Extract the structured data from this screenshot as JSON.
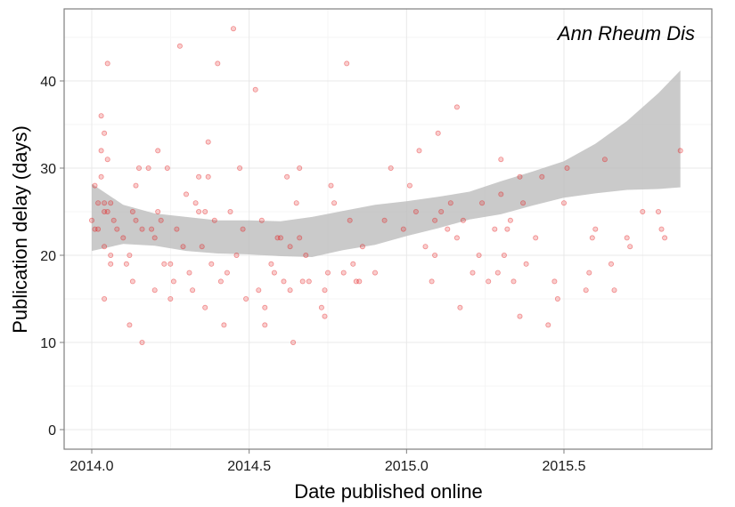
{
  "chart_data": {
    "type": "scatter",
    "title": "",
    "annotation": "Ann Rheum Dis",
    "xlabel": "Date published online",
    "ylabel": "Publication delay (days)",
    "xlim": [
      1913.91,
      2015.97
    ],
    "ylim": [
      -2.2,
      48.2
    ],
    "xticks": [
      2014.0,
      2014.5,
      2015.0,
      2015.5
    ],
    "xtick_labels": [
      "2014.0",
      "2014.5",
      "2015.0",
      "2015.5"
    ],
    "yticks": [
      0,
      10,
      20,
      30,
      40
    ],
    "ytick_labels": [
      "0",
      "10",
      "20",
      "30",
      "40"
    ],
    "grid": true,
    "colors": {
      "points": "#e41a1c",
      "band": "#bdbdbd",
      "grid": "#e8e8e8",
      "frame": "#7f7f7f"
    },
    "points": [
      [
        2014.0,
        24
      ],
      [
        2014.01,
        23
      ],
      [
        2014.01,
        28
      ],
      [
        2014.02,
        26
      ],
      [
        2014.02,
        23
      ],
      [
        2014.03,
        36
      ],
      [
        2014.03,
        32
      ],
      [
        2014.03,
        29
      ],
      [
        2014.04,
        34
      ],
      [
        2014.04,
        25
      ],
      [
        2014.04,
        26
      ],
      [
        2014.04,
        21
      ],
      [
        2014.04,
        15
      ],
      [
        2014.05,
        42
      ],
      [
        2014.05,
        31
      ],
      [
        2014.05,
        25
      ],
      [
        2014.06,
        26
      ],
      [
        2014.06,
        20
      ],
      [
        2014.06,
        19
      ],
      [
        2014.07,
        24
      ],
      [
        2014.08,
        23
      ],
      [
        2014.1,
        22
      ],
      [
        2014.11,
        19
      ],
      [
        2014.12,
        20
      ],
      [
        2014.12,
        12
      ],
      [
        2014.13,
        25
      ],
      [
        2014.13,
        17
      ],
      [
        2014.14,
        28
      ],
      [
        2014.14,
        24
      ],
      [
        2014.15,
        30
      ],
      [
        2014.16,
        23
      ],
      [
        2014.16,
        10
      ],
      [
        2014.18,
        30
      ],
      [
        2014.19,
        23
      ],
      [
        2014.2,
        22
      ],
      [
        2014.2,
        16
      ],
      [
        2014.21,
        32
      ],
      [
        2014.21,
        25
      ],
      [
        2014.22,
        24
      ],
      [
        2014.23,
        19
      ],
      [
        2014.24,
        30
      ],
      [
        2014.25,
        19
      ],
      [
        2014.25,
        15
      ],
      [
        2014.26,
        17
      ],
      [
        2014.27,
        23
      ],
      [
        2014.28,
        44
      ],
      [
        2014.29,
        21
      ],
      [
        2014.3,
        27
      ],
      [
        2014.31,
        18
      ],
      [
        2014.32,
        16
      ],
      [
        2014.33,
        26
      ],
      [
        2014.34,
        29
      ],
      [
        2014.34,
        25
      ],
      [
        2014.35,
        21
      ],
      [
        2014.36,
        25
      ],
      [
        2014.36,
        14
      ],
      [
        2014.37,
        33
      ],
      [
        2014.37,
        29
      ],
      [
        2014.38,
        19
      ],
      [
        2014.39,
        24
      ],
      [
        2014.4,
        42
      ],
      [
        2014.41,
        17
      ],
      [
        2014.42,
        12
      ],
      [
        2014.43,
        18
      ],
      [
        2014.44,
        25
      ],
      [
        2014.45,
        46
      ],
      [
        2014.46,
        20
      ],
      [
        2014.47,
        30
      ],
      [
        2014.48,
        23
      ],
      [
        2014.49,
        15
      ],
      [
        2014.52,
        39
      ],
      [
        2014.53,
        16
      ],
      [
        2014.54,
        24
      ],
      [
        2014.55,
        14
      ],
      [
        2014.55,
        12
      ],
      [
        2014.57,
        19
      ],
      [
        2014.58,
        18
      ],
      [
        2014.59,
        22
      ],
      [
        2014.6,
        22
      ],
      [
        2014.61,
        17
      ],
      [
        2014.62,
        29
      ],
      [
        2014.63,
        21
      ],
      [
        2014.63,
        16
      ],
      [
        2014.64,
        10
      ],
      [
        2014.65,
        26
      ],
      [
        2014.66,
        30
      ],
      [
        2014.66,
        22
      ],
      [
        2014.67,
        17
      ],
      [
        2014.68,
        20
      ],
      [
        2014.69,
        17
      ],
      [
        2014.73,
        14
      ],
      [
        2014.74,
        13
      ],
      [
        2014.74,
        16
      ],
      [
        2014.75,
        18
      ],
      [
        2014.76,
        28
      ],
      [
        2014.77,
        26
      ],
      [
        2014.8,
        18
      ],
      [
        2014.81,
        42
      ],
      [
        2014.82,
        24
      ],
      [
        2014.83,
        19
      ],
      [
        2014.84,
        17
      ],
      [
        2014.85,
        17
      ],
      [
        2014.86,
        21
      ],
      [
        2014.9,
        18
      ],
      [
        2014.93,
        24
      ],
      [
        2014.95,
        30
      ],
      [
        2014.99,
        23
      ],
      [
        2015.01,
        28
      ],
      [
        2015.03,
        25
      ],
      [
        2015.04,
        32
      ],
      [
        2015.06,
        21
      ],
      [
        2015.08,
        17
      ],
      [
        2015.09,
        20
      ],
      [
        2015.09,
        24
      ],
      [
        2015.1,
        34
      ],
      [
        2015.11,
        25
      ],
      [
        2015.13,
        23
      ],
      [
        2015.14,
        26
      ],
      [
        2015.16,
        37
      ],
      [
        2015.16,
        22
      ],
      [
        2015.17,
        14
      ],
      [
        2015.18,
        24
      ],
      [
        2015.21,
        18
      ],
      [
        2015.23,
        20
      ],
      [
        2015.24,
        26
      ],
      [
        2015.26,
        17
      ],
      [
        2015.28,
        23
      ],
      [
        2015.29,
        18
      ],
      [
        2015.3,
        27
      ],
      [
        2015.3,
        31
      ],
      [
        2015.31,
        20
      ],
      [
        2015.32,
        23
      ],
      [
        2015.33,
        24
      ],
      [
        2015.34,
        17
      ],
      [
        2015.36,
        29
      ],
      [
        2015.36,
        13
      ],
      [
        2015.37,
        26
      ],
      [
        2015.38,
        19
      ],
      [
        2015.41,
        22
      ],
      [
        2015.43,
        29
      ],
      [
        2015.45,
        12
      ],
      [
        2015.47,
        17
      ],
      [
        2015.48,
        15
      ],
      [
        2015.5,
        26
      ],
      [
        2015.51,
        30
      ],
      [
        2015.57,
        16
      ],
      [
        2015.58,
        18
      ],
      [
        2015.59,
        22
      ],
      [
        2015.6,
        23
      ],
      [
        2015.63,
        31
      ],
      [
        2015.65,
        19
      ],
      [
        2015.66,
        16
      ],
      [
        2015.7,
        22
      ],
      [
        2015.71,
        21
      ],
      [
        2015.75,
        25
      ],
      [
        2015.8,
        25
      ],
      [
        2015.81,
        23
      ],
      [
        2015.82,
        22
      ],
      [
        2015.87,
        32
      ]
    ],
    "smooth_band": {
      "x": [
        2014.0,
        2014.1,
        2014.2,
        2014.3,
        2014.4,
        2014.5,
        2014.6,
        2014.7,
        2014.8,
        2014.9,
        2015.0,
        2015.1,
        2015.2,
        2015.3,
        2015.4,
        2015.5,
        2015.6,
        2015.7,
        2015.8,
        2015.87
      ],
      "upper": [
        28.2,
        25.8,
        24.8,
        24.4,
        24.0,
        24.0,
        23.9,
        24.4,
        25.1,
        25.8,
        26.2,
        26.7,
        27.3,
        28.5,
        29.6,
        30.8,
        32.8,
        35.4,
        38.6,
        41.2
      ],
      "lower": [
        20.5,
        21.3,
        21.1,
        20.5,
        20.2,
        20.1,
        19.9,
        19.8,
        20.6,
        21.2,
        22.2,
        23.1,
        24.1,
        24.7,
        25.7,
        26.6,
        27.1,
        27.5,
        27.6,
        27.8
      ]
    }
  }
}
